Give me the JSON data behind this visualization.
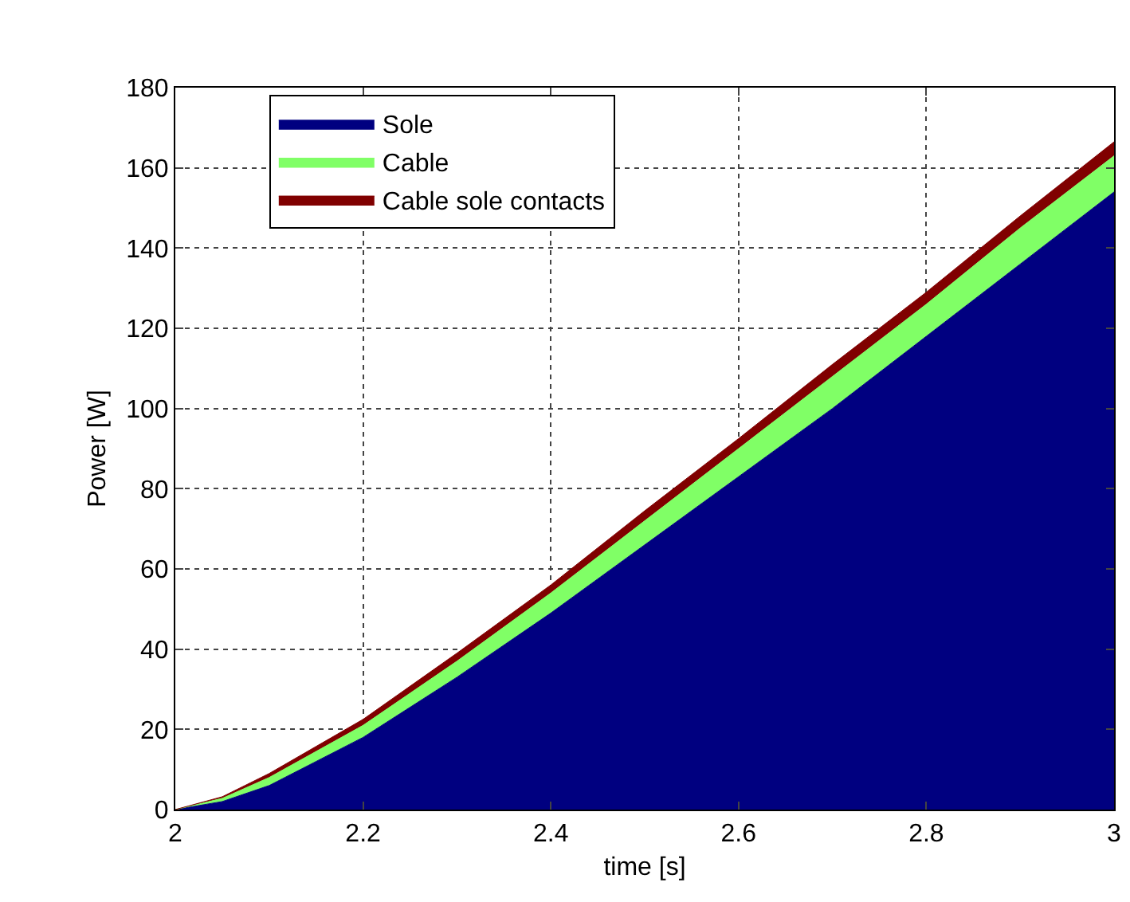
{
  "chart_data": {
    "type": "area",
    "stacked": true,
    "xlabel": "time [s]",
    "ylabel": "Power [W]",
    "x": [
      2,
      2.05,
      2.1,
      2.2,
      2.3,
      2.4,
      2.5,
      2.6,
      2.7,
      2.8,
      2.9,
      3
    ],
    "series": [
      {
        "name": "Sole",
        "color": "#000080",
        "values": [
          0,
          2,
          6,
          18,
          33,
          49,
          66,
          83,
          100,
          118,
          136,
          154
        ]
      },
      {
        "name": "Cable",
        "color": "#80ff66",
        "values": [
          0,
          0.8,
          2,
          3,
          4,
          5,
          6,
          7,
          8,
          8,
          9,
          9
        ]
      },
      {
        "name": "Cable sole contacts",
        "color": "#800000",
        "values": [
          0,
          0.4,
          1,
          1.5,
          2,
          2,
          2.5,
          2.5,
          3,
          3,
          3,
          3.5
        ]
      }
    ],
    "xlim": [
      2,
      3
    ],
    "xticks": [
      2,
      2.2,
      2.4,
      2.6,
      2.8,
      3
    ],
    "ylim": [
      0,
      180
    ],
    "yticks": [
      0,
      20,
      40,
      60,
      80,
      100,
      120,
      140,
      160,
      180
    ],
    "grid": true,
    "legend": "top left"
  }
}
